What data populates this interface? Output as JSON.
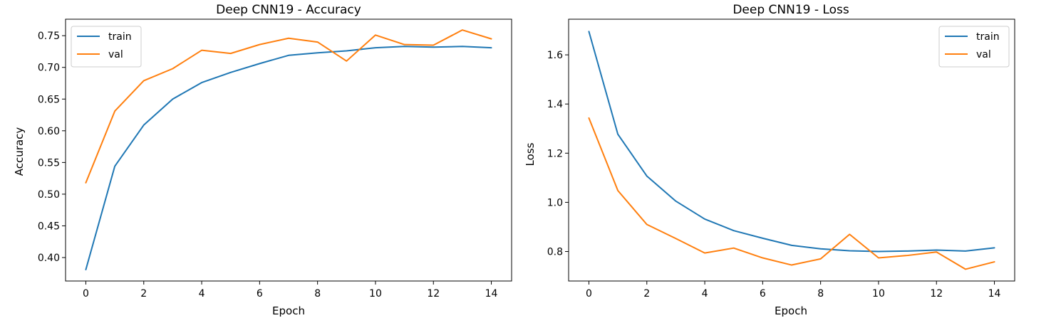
{
  "colors": {
    "train": "#1f77b4",
    "val": "#ff7f0e"
  },
  "chart_data": [
    {
      "type": "line",
      "title": "Deep CNN19 - Accuracy",
      "xlabel": "Epoch",
      "ylabel": "Accuracy",
      "x": [
        0,
        1,
        2,
        3,
        4,
        5,
        6,
        7,
        8,
        9,
        10,
        11,
        12,
        13,
        14
      ],
      "xlim": [
        -0.7,
        14.7
      ],
      "ylim": [
        0.363,
        0.776
      ],
      "xticks": [
        0,
        2,
        4,
        6,
        8,
        10,
        12,
        14
      ],
      "yticks": [
        0.4,
        0.45,
        0.5,
        0.55,
        0.6,
        0.65,
        0.7,
        0.75
      ],
      "xtick_labels": [
        "0",
        "2",
        "4",
        "6",
        "8",
        "10",
        "12",
        "14"
      ],
      "ytick_labels": [
        "0.40",
        "0.45",
        "0.50",
        "0.55",
        "0.60",
        "0.65",
        "0.70",
        "0.75"
      ],
      "legend_position": "upper-left",
      "grid": false,
      "series": [
        {
          "name": "train",
          "color": "#1f77b4",
          "values": [
            0.381,
            0.544,
            0.609,
            0.65,
            0.676,
            0.692,
            0.706,
            0.719,
            0.723,
            0.726,
            0.731,
            0.733,
            0.732,
            0.733,
            0.731
          ]
        },
        {
          "name": "val",
          "color": "#ff7f0e",
          "values": [
            0.518,
            0.631,
            0.679,
            0.698,
            0.727,
            0.722,
            0.736,
            0.746,
            0.74,
            0.71,
            0.751,
            0.736,
            0.735,
            0.759,
            0.745
          ]
        }
      ]
    },
    {
      "type": "line",
      "title": "Deep CNN19 - Loss",
      "xlabel": "Epoch",
      "ylabel": "Loss",
      "x": [
        0,
        1,
        2,
        3,
        4,
        5,
        6,
        7,
        8,
        9,
        10,
        11,
        12,
        13,
        14
      ],
      "xlim": [
        -0.7,
        14.7
      ],
      "ylim": [
        0.68,
        1.745
      ],
      "xticks": [
        0,
        2,
        4,
        6,
        8,
        10,
        12,
        14
      ],
      "yticks": [
        0.8,
        1.0,
        1.2,
        1.4,
        1.6
      ],
      "xtick_labels": [
        "0",
        "2",
        "4",
        "6",
        "8",
        "10",
        "12",
        "14"
      ],
      "ytick_labels": [
        "0.8",
        "1.0",
        "1.2",
        "1.4",
        "1.6"
      ],
      "legend_position": "upper-right",
      "grid": false,
      "series": [
        {
          "name": "train",
          "color": "#1f77b4",
          "values": [
            1.695,
            1.277,
            1.107,
            1.005,
            0.932,
            0.885,
            0.854,
            0.825,
            0.811,
            0.803,
            0.8,
            0.802,
            0.806,
            0.802,
            0.815
          ]
        },
        {
          "name": "val",
          "color": "#ff7f0e",
          "values": [
            1.343,
            1.048,
            0.91,
            0.853,
            0.794,
            0.814,
            0.774,
            0.745,
            0.77,
            0.87,
            0.774,
            0.784,
            0.798,
            0.728,
            0.758
          ]
        }
      ]
    }
  ]
}
